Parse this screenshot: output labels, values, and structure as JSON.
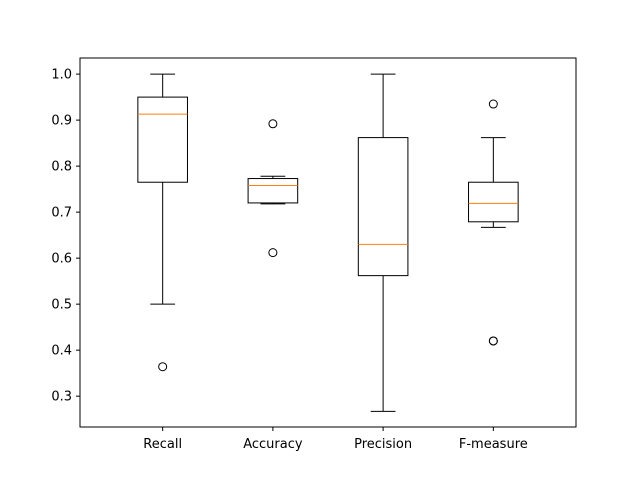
{
  "chart_data": {
    "type": "box",
    "title": "",
    "xlabel": "",
    "ylabel": "",
    "ylim": [
      0.233,
      1.035
    ],
    "yticks": [
      0.3,
      0.4,
      0.5,
      0.6,
      0.7,
      0.8,
      0.9,
      1.0
    ],
    "ytick_labels": [
      "0.3",
      "0.4",
      "0.5",
      "0.6",
      "0.7",
      "0.8",
      "0.9",
      "1.0"
    ],
    "grid": false,
    "colors": {
      "box": "#000000",
      "median": "#ff7f0e",
      "flier": "#000000",
      "background": "#ffffff"
    },
    "categories": [
      "Recall",
      "Accuracy",
      "Precision",
      "F-measure"
    ],
    "boxes": [
      {
        "label": "Recall",
        "whisker_low": 0.5,
        "q1": 0.765,
        "median": 0.913,
        "q3": 0.95,
        "whisker_high": 1.0,
        "outliers": [
          0.364
        ]
      },
      {
        "label": "Accuracy",
        "whisker_low": 0.718,
        "q1": 0.72,
        "median": 0.758,
        "q3": 0.773,
        "whisker_high": 0.778,
        "outliers": [
          0.892,
          0.612
        ]
      },
      {
        "label": "Precision",
        "whisker_low": 0.267,
        "q1": 0.562,
        "median": 0.63,
        "q3": 0.862,
        "whisker_high": 1.0,
        "outliers": []
      },
      {
        "label": "F-measure",
        "whisker_low": 0.667,
        "q1": 0.679,
        "median": 0.719,
        "q3": 0.765,
        "whisker_high": 0.862,
        "outliers": [
          0.935,
          0.42,
          0.42
        ]
      }
    ]
  }
}
